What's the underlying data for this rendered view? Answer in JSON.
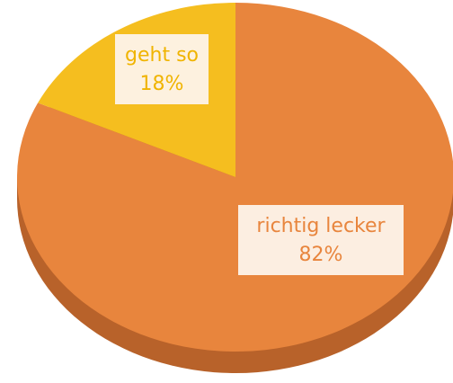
{
  "chart_data": {
    "type": "pie",
    "categories": [
      "richtig lecker",
      "geht so"
    ],
    "values": [
      82,
      18
    ],
    "value_labels": [
      "82%",
      "18%"
    ],
    "colors": [
      "#e8853d",
      "#f5be1f"
    ],
    "text_colors": [
      "#e8853d",
      "#f0b400"
    ]
  }
}
